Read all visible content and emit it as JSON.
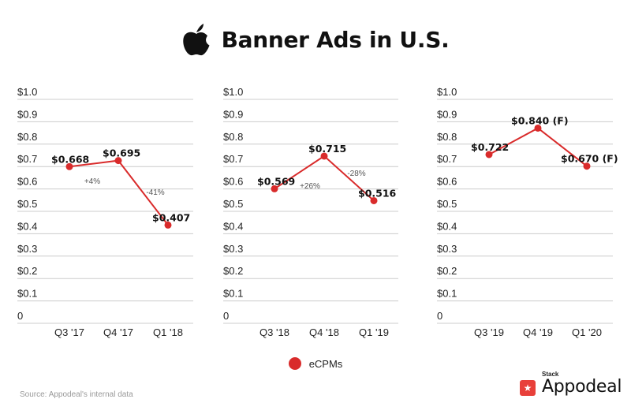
{
  "title": "Banner Ads in U.S.",
  "legend": {
    "label": "eCPMs",
    "color": "#d92b2b"
  },
  "source": "Source: Appodeal's internal data",
  "brand": {
    "small": "Stack",
    "name": "Appodeal",
    "color": "#e8403a"
  },
  "colors": {
    "line": "#d92b2b",
    "grid": "#cccccc"
  },
  "icons": {
    "logo": "apple-logo-icon",
    "brand": "appodeal-star-icon"
  },
  "chart_data": [
    {
      "type": "line",
      "categories": [
        "Q3 '17",
        "Q4 '17",
        "Q1 '18"
      ],
      "values": [
        0.668,
        0.695,
        0.407
      ],
      "data_labels": [
        "$0.668",
        "$0.695",
        "$0.407"
      ],
      "annotations": [
        "+4%",
        "-41%"
      ],
      "yticks": [
        "0",
        "$0.1",
        "$0.2",
        "$0.3",
        "$0.4",
        "$0.5",
        "$0.6",
        "$0.7",
        "$0.8",
        "$0.9",
        "$1.0"
      ],
      "ylim": [
        0,
        1.0
      ],
      "grid": true
    },
    {
      "type": "line",
      "categories": [
        "Q3 '18",
        "Q4 '18",
        "Q1 '19"
      ],
      "values": [
        0.569,
        0.715,
        0.516
      ],
      "data_labels": [
        "$0.569",
        "$0.715",
        "$0.516"
      ],
      "annotations": [
        "+26%",
        "-28%"
      ],
      "yticks": [
        "0",
        "$0.1",
        "$0.2",
        "$0.3",
        "$0.4",
        "$0.5",
        "$0.6",
        "$0.7",
        "$0.8",
        "$0.9",
        "$1.0"
      ],
      "ylim": [
        0,
        1.0
      ],
      "grid": true
    },
    {
      "type": "line",
      "categories": [
        "Q3 '19",
        "Q4 '19",
        "Q1 '20"
      ],
      "values": [
        0.722,
        0.84,
        0.67
      ],
      "data_labels": [
        "$0.722",
        "$0.840 (F)",
        "$0.670 (F)"
      ],
      "annotations": [],
      "yticks": [
        "0",
        "$0.1",
        "$0.2",
        "$0.3",
        "$0.4",
        "$0.5",
        "$0.6",
        "$0.7",
        "$0.8",
        "$0.9",
        "$1.0"
      ],
      "ylim": [
        0,
        1.0
      ],
      "grid": true
    }
  ]
}
